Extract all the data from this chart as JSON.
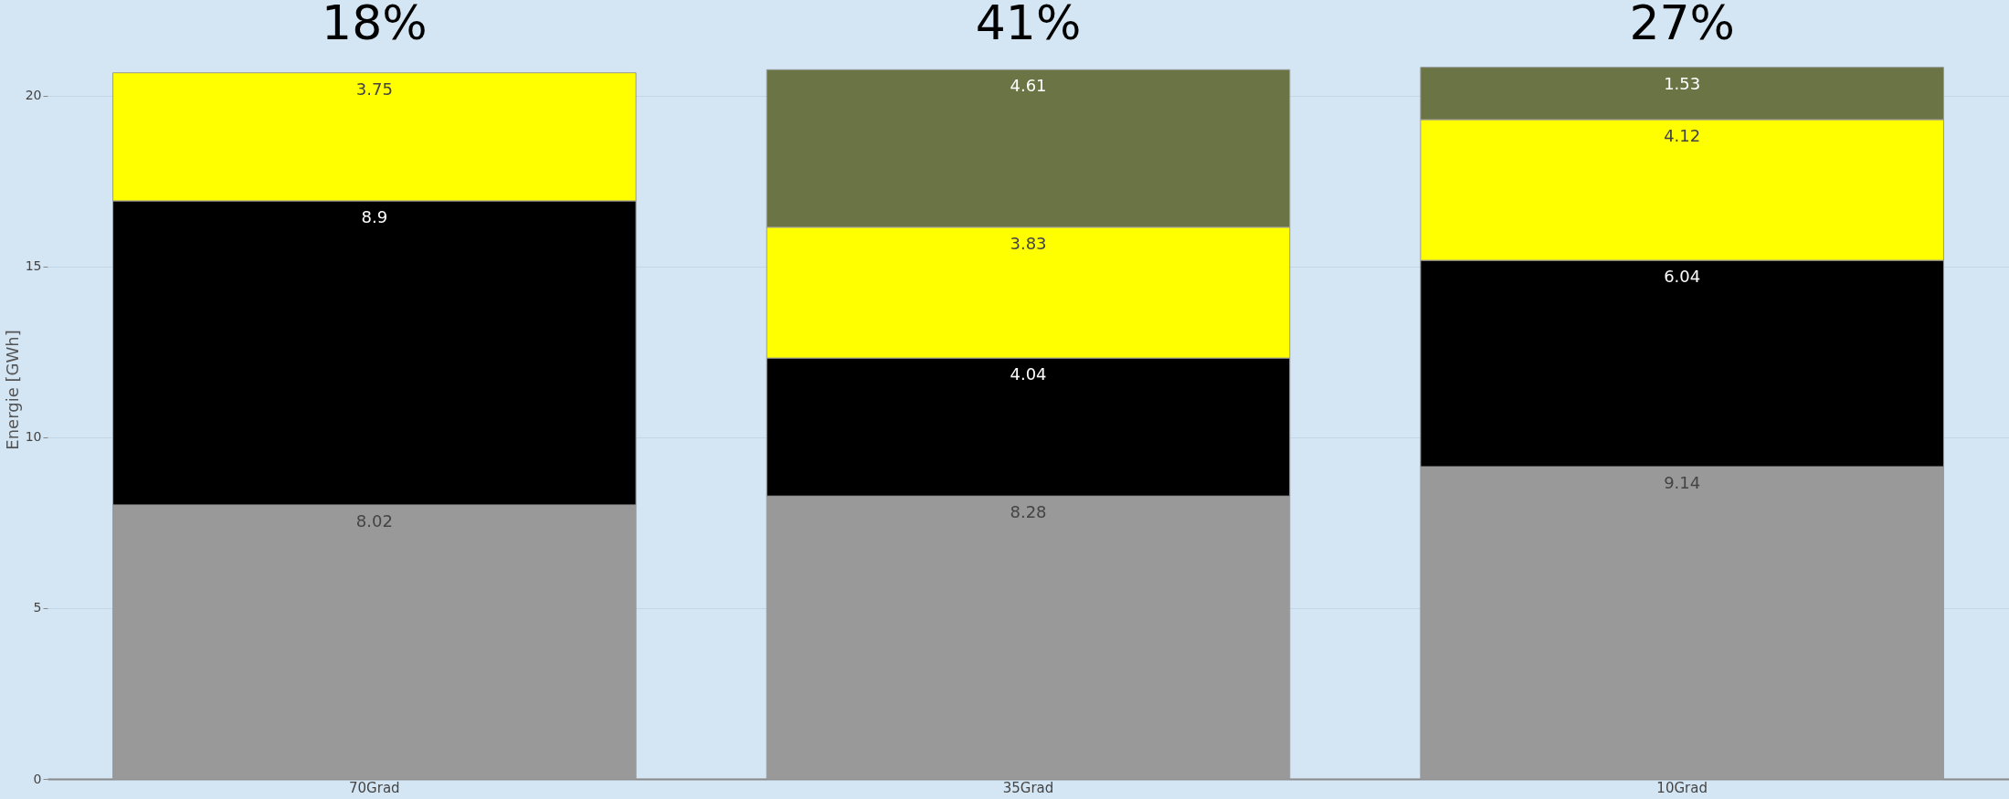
{
  "chart_data": {
    "type": "bar",
    "stacked": true,
    "ylabel": "Energie [GWh]",
    "categories": [
      "70Grad",
      "35Grad",
      "10Grad"
    ],
    "series": [
      {
        "color": "#999999",
        "values": [
          8.02,
          8.28,
          9.14
        ]
      },
      {
        "color": "#000000",
        "values": [
          8.9,
          4.04,
          6.04
        ]
      },
      {
        "color": "#ffff00",
        "values": [
          3.75,
          3.83,
          4.12
        ]
      },
      {
        "color": "#6b7444",
        "values": [
          null,
          4.61,
          1.53
        ]
      }
    ],
    "ylim": [
      0,
      22.8
    ],
    "yticks": [
      0,
      5,
      10,
      15,
      20
    ],
    "grid": "y",
    "data_labels": true,
    "annotations": [
      "18%",
      "41%",
      "27%"
    ]
  }
}
